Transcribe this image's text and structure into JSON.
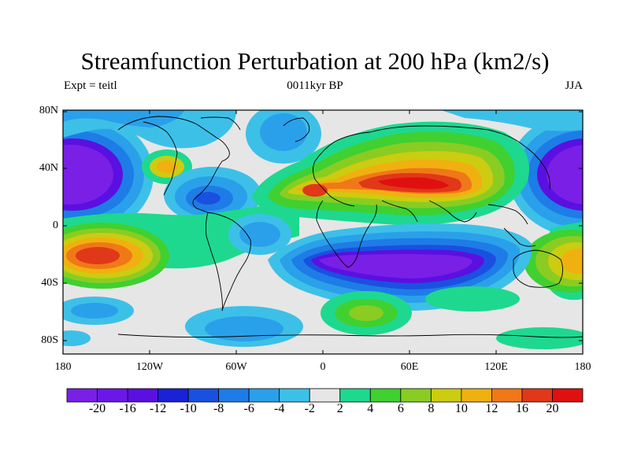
{
  "title": "Streamfunction Perturbation at 200 hPa (km2/s)",
  "subtitle_left": "Expt = teitl",
  "subtitle_center": "0011kyr BP",
  "subtitle_right": "JJA",
  "lat_ticks": [
    "80N",
    "40N",
    "0",
    "40S",
    "80S"
  ],
  "lon_ticks": [
    "180",
    "120W",
    "60W",
    "0",
    "60E",
    "120E",
    "180"
  ],
  "colorbar": {
    "labels": [
      "-20",
      "-16",
      "-12",
      "-10",
      "-8",
      "-6",
      "-4",
      "-2",
      "2",
      "4",
      "6",
      "8",
      "10",
      "12",
      "16",
      "20"
    ],
    "colors": [
      "#7a1fe6",
      "#6a18e8",
      "#5a10e0",
      "#1a22d8",
      "#1a50e0",
      "#1e7ce6",
      "#2aa0ea",
      "#3dc0e8",
      "#e6e6e6",
      "#1ed890",
      "#40d030",
      "#8acc22",
      "#cccc10",
      "#f0b010",
      "#f07818",
      "#e03818",
      "#e01010"
    ]
  },
  "map_colors": {
    "background": "#e6e6e6",
    "coast": "#000000"
  }
}
